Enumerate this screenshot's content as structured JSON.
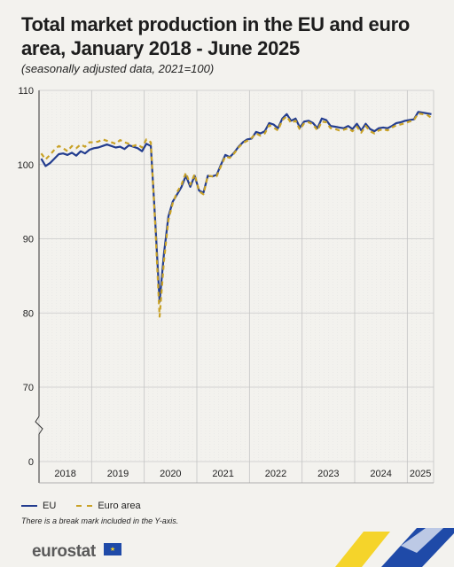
{
  "title": "Total market production in the EU and euro area, January 2018 - June 2025",
  "subtitle": "(seasonally adjusted data, 2021=100)",
  "legend": {
    "eu": "EU",
    "ea": "Euro area"
  },
  "note": "There is a break mark included in the Y-axis.",
  "logo": "eurostat",
  "colors": {
    "eu": "#233d8f",
    "ea": "#c9a227",
    "accent_blue": "#1f4aa8",
    "accent_yellow": "#f4d21f"
  },
  "chart_data": {
    "type": "line",
    "ylim": [
      0,
      110
    ],
    "y_break": [
      0,
      65
    ],
    "yticks": [
      0,
      70,
      80,
      90,
      100,
      110
    ],
    "years": [
      "2018",
      "2019",
      "2020",
      "2021",
      "2022",
      "2023",
      "2024",
      "2025"
    ],
    "x_start": "2018-01",
    "x_end": "2025-06",
    "grid": true,
    "legend_position": "bottom-left",
    "series": [
      {
        "name": "EU",
        "color": "#233d8f",
        "style": "solid",
        "values": [
          100.8,
          99.8,
          100.2,
          100.8,
          101.4,
          101.5,
          101.3,
          101.6,
          101.2,
          101.8,
          101.5,
          102.0,
          102.2,
          102.3,
          102.5,
          102.7,
          102.5,
          102.3,
          102.4,
          102.1,
          102.6,
          102.4,
          102.2,
          101.8,
          102.8,
          102.5,
          92.5,
          81.5,
          88.0,
          93.0,
          95.0,
          96.0,
          97.0,
          98.5,
          97.0,
          98.5,
          96.5,
          96.2,
          98.5,
          98.4,
          98.6,
          100.0,
          101.3,
          101.0,
          101.6,
          102.4,
          103.0,
          103.4,
          103.5,
          104.4,
          104.2,
          104.5,
          105.6,
          105.4,
          104.9,
          106.2,
          106.8,
          105.9,
          106.2,
          105.0,
          105.8,
          105.9,
          105.6,
          104.9,
          106.2,
          106.0,
          105.2,
          105.1,
          105.0,
          104.9,
          105.2,
          104.8,
          105.5,
          104.6,
          105.5,
          104.8,
          104.5,
          104.9,
          105.0,
          104.9,
          105.2,
          105.6,
          105.7,
          105.9,
          106.0,
          106.1,
          107.1,
          107.0,
          106.9,
          106.8
        ]
      },
      {
        "name": "Euro area",
        "color": "#c9a227",
        "style": "dashed",
        "values": [
          101.5,
          100.7,
          101.3,
          102.0,
          102.5,
          102.2,
          101.8,
          102.5,
          102.2,
          102.7,
          102.4,
          103.0,
          103.0,
          103.1,
          103.4,
          103.2,
          103.0,
          102.8,
          103.3,
          103.0,
          102.8,
          102.5,
          102.7,
          102.3,
          103.4,
          103.0,
          92.0,
          79.5,
          87.0,
          92.5,
          94.8,
          96.3,
          97.3,
          98.9,
          97.3,
          98.7,
          96.4,
          96.0,
          98.5,
          98.4,
          98.4,
          99.8,
          101.1,
          100.9,
          101.5,
          102.3,
          102.9,
          103.2,
          103.6,
          104.2,
          103.9,
          104.2,
          105.3,
          105.0,
          104.6,
          106.0,
          106.5,
          105.6,
          105.9,
          104.7,
          105.6,
          105.7,
          105.4,
          104.6,
          105.8,
          105.7,
          104.9,
          104.8,
          104.6,
          104.7,
          104.9,
          104.5,
          105.1,
          104.3,
          105.2,
          104.5,
          104.2,
          104.6,
          104.8,
          104.6,
          105.0,
          105.3,
          105.4,
          105.6,
          105.8,
          106.0,
          106.9,
          106.8,
          106.7,
          106.3
        ]
      }
    ]
  }
}
